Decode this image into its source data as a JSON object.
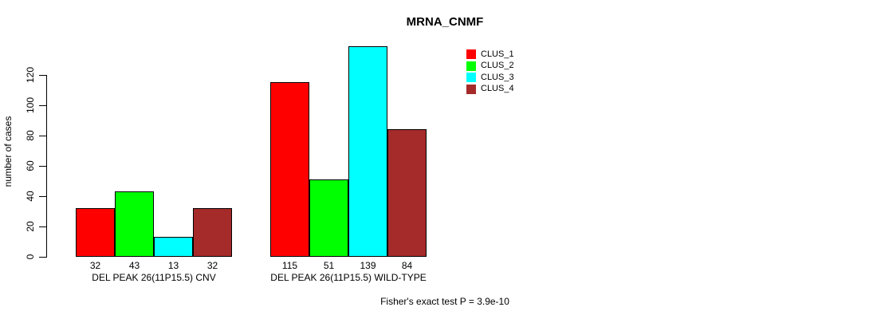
{
  "chart_data": {
    "type": "bar",
    "title": "MRNA_CNMF",
    "ylabel": "number of cases",
    "xlabel": "",
    "categories": [
      "DEL PEAK 26(11P15.5) CNV",
      "DEL PEAK 26(11P15.5) WILD-TYPE"
    ],
    "series": [
      {
        "name": "CLUS_1",
        "color": "#FF0000",
        "values": [
          32,
          115
        ]
      },
      {
        "name": "CLUS_2",
        "color": "#00FF00",
        "values": [
          43,
          51
        ]
      },
      {
        "name": "CLUS_3",
        "color": "#00FFFF",
        "values": [
          13,
          139
        ]
      },
      {
        "name": "CLUS_4",
        "color": "#A52A2A",
        "values": [
          32,
          84
        ]
      }
    ],
    "bar_value_labels": [
      [
        32,
        43,
        13,
        32
      ],
      [
        115,
        51,
        139,
        84
      ]
    ],
    "yticks": [
      0,
      20,
      40,
      60,
      80,
      100,
      120
    ],
    "ylim": [
      0,
      139
    ],
    "grid": false,
    "legend_position": "top-right",
    "legend_entries": [
      "CLUS_1",
      "CLUS_2",
      "CLUS_3",
      "CLUS_4"
    ],
    "annotation": "Fisher's exact test P = 3.9e-10"
  }
}
